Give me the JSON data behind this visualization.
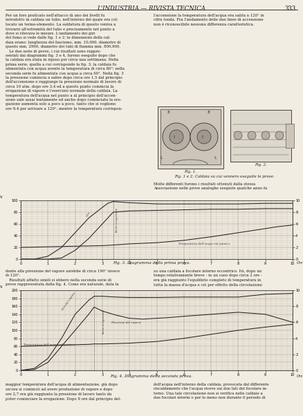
{
  "page_title": "L'INDUSTRIA — RIVISTA TECNICA",
  "page_number": "333",
  "bg": "#f2ede3",
  "text_color": "#1a1a1a",
  "grid_color": "#b8b0a0",
  "line_color": "#222222",
  "fig3_caption": "Fig. 3. Diagramma della prima prova.",
  "fig4_caption": "Fig. 4. Diagramma della seconda prova.",
  "left_text_top": "Per un foro praticato nell'attacco di uno dei livelli fu\nintrodotto in caldaia un tubo, nell'interno del quale era col-\nlocato un termo-elemento. La saldatura di questo veniva a\ntrovarsi all'estremità del tubo e precisamente nel punto a\ndove si rilevava le misure. L'andamento dei giri\ndel fumo si vede dalle fig. 1 e 2: le dimensioni della cal-\ndaia erano: lunghezza del fascismo, mm. 10,000, diametro di\nquesto mm. 2960, diametro dei tubi di fiamma mm. 800,900.\n   Le due serie di prove, i cui risultati sono rappre-\nsentati dai diagrammi fig. 3 e 4, furono eseguite dopo che\nla caldaia era stata in riposo per circa una settimana. Nella\nprima serie, quella a cui corrisponde la fig. 3, la caldaia fu\nalimentata con acqua avente la temperatura di circa 80°; nella\nseconda serie fu alimentata con acqua a circa 60°. Nella fig. 3\nla pressione comincia a salire dopo circa ore 1,5 dal principio\ndell'accensione e raggiunge la pressione normale di lavoro di\ncirca 10 atm. dopo ore 3,4 ed a questo punto comincia la\nerogazione di vapore e l'esercizio normale della caldaia. La\ntemperatura dell'acqua nel punto a al principio dell'accen-\nsione sale assai lentamente ed anche dopo cominciata la ero-\ngazione aumenta solo a poco a poco, tanto che si vogliono\nore 9,4 per arrivare a 120°, mentre la temperatura corrispon-",
  "right_text_top": "l'accensione la temperatura dell'acqua era salita a 120° in\ncifra tonda. Fra l'andamento delle due linee di accensione\nnon è riconoscibile nessuna differenza caratteristica.",
  "right_text_below_figs": "Molte differenti furono i risultati ottenuti dalla stessa\nAssociazione nelle prove analoghe eseguite qualche anno fa",
  "mid_left": "dente alla pressione del vapore sarebbe di circa 190° invece\ndi 120°.\n   Risultati affatto simili si ebbero nella seconda serie di\nprove rappresentata dalla fig. 4. Come era naturale, data la",
  "mid_right": "su una caldaia a focolare interno eccentrico. Ivi, dopo un\ntempo relativamente breve - in un caso dopo circa 2 ore -\nera già raggiunto l'equilibrio completo di temperatura in\ntutta la massa d'acqua e ciò per effetto della circolazione",
  "bot_left": "maggior temperatura dell'acqua di alimentazione, già dopo\nun'ora si cominciò ad avere produzione di vapore e dopo\nore 2,7 era già raggiunta la pressione di lavoro tanto da\npoter cominciare la erogazione. Dopo 9 ore dal principio del-",
  "bot_right": "dell'acqua nell'interno della caldaia, provocata dal differente\nriscaldamento che l'acqua riceve sui due lati del focolare in-\nterno. Una tale circolazione non si verifica nelle caldaie a\ndue focolari interni o per lo meno non durante il periodo di"
}
